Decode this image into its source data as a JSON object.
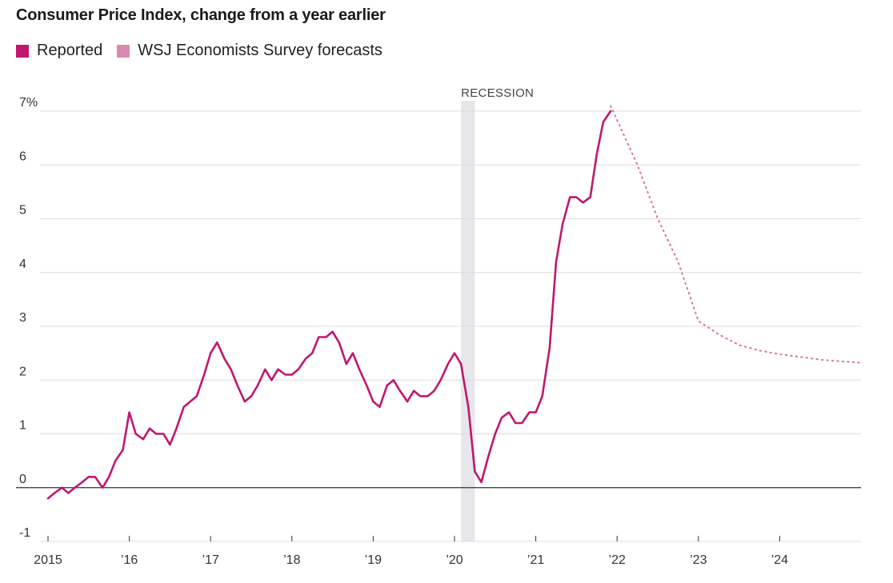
{
  "chart_data": {
    "type": "line",
    "title": "Consumer Price Index, change from a year earlier",
    "xlabel": "",
    "ylabel": "",
    "ylim": [
      -1,
      7
    ],
    "y_ticks": [
      {
        "value": 7,
        "label": "7%"
      },
      {
        "value": 6,
        "label": "6"
      },
      {
        "value": 5,
        "label": "5"
      },
      {
        "value": 4,
        "label": "4"
      },
      {
        "value": 3,
        "label": "3"
      },
      {
        "value": 2,
        "label": "2"
      },
      {
        "value": 1,
        "label": "1"
      },
      {
        "value": 0,
        "label": "0"
      },
      {
        "value": -1,
        "label": "-1"
      }
    ],
    "x_ticks": [
      {
        "value": 2015,
        "label": "2015"
      },
      {
        "value": 2016,
        "label": "’16"
      },
      {
        "value": 2017,
        "label": "’17"
      },
      {
        "value": 2018,
        "label": "’18"
      },
      {
        "value": 2019,
        "label": "’19"
      },
      {
        "value": 2020,
        "label": "’20"
      },
      {
        "value": 2021,
        "label": "’21"
      },
      {
        "value": 2022,
        "label": "’22"
      },
      {
        "value": 2023,
        "label": "’23"
      },
      {
        "value": 2024,
        "label": "’24"
      }
    ],
    "grid": true,
    "legend_position": "top-left",
    "recession": {
      "start": 2020.08,
      "end": 2020.25,
      "label": "RECESSION",
      "color": "#e6e7ea"
    },
    "series": [
      {
        "name": "Reported",
        "style": "solid",
        "color": "#c0176e",
        "x": [
          2015.0,
          2015.08,
          2015.17,
          2015.25,
          2015.33,
          2015.42,
          2015.5,
          2015.58,
          2015.67,
          2015.75,
          2015.83,
          2015.92,
          2016.0,
          2016.08,
          2016.17,
          2016.25,
          2016.33,
          2016.42,
          2016.5,
          2016.58,
          2016.67,
          2016.75,
          2016.83,
          2016.92,
          2017.0,
          2017.08,
          2017.17,
          2017.25,
          2017.33,
          2017.42,
          2017.5,
          2017.58,
          2017.67,
          2017.75,
          2017.83,
          2017.92,
          2018.0,
          2018.08,
          2018.17,
          2018.25,
          2018.33,
          2018.42,
          2018.5,
          2018.58,
          2018.67,
          2018.75,
          2018.83,
          2018.92,
          2019.0,
          2019.08,
          2019.17,
          2019.25,
          2019.33,
          2019.42,
          2019.5,
          2019.58,
          2019.67,
          2019.75,
          2019.83,
          2019.92,
          2020.0,
          2020.08,
          2020.17,
          2020.25,
          2020.33,
          2020.42,
          2020.5,
          2020.58,
          2020.67,
          2020.75,
          2020.83,
          2020.92,
          2021.0,
          2021.08,
          2021.17,
          2021.25,
          2021.33,
          2021.42,
          2021.5,
          2021.58,
          2021.67,
          2021.75,
          2021.83,
          2021.92
        ],
        "y": [
          -0.2,
          -0.1,
          0.0,
          -0.1,
          0.0,
          0.1,
          0.2,
          0.2,
          0.0,
          0.2,
          0.5,
          0.7,
          1.4,
          1.0,
          0.9,
          1.1,
          1.0,
          1.0,
          0.8,
          1.1,
          1.5,
          1.6,
          1.7,
          2.1,
          2.5,
          2.7,
          2.4,
          2.2,
          1.9,
          1.6,
          1.7,
          1.9,
          2.2,
          2.0,
          2.2,
          2.1,
          2.1,
          2.2,
          2.4,
          2.5,
          2.8,
          2.8,
          2.9,
          2.7,
          2.3,
          2.5,
          2.2,
          1.9,
          1.6,
          1.5,
          1.9,
          2.0,
          1.8,
          1.6,
          1.8,
          1.7,
          1.7,
          1.8,
          2.0,
          2.3,
          2.5,
          2.3,
          1.5,
          0.3,
          0.1,
          0.6,
          1.0,
          1.3,
          1.4,
          1.2,
          1.2,
          1.4,
          1.4,
          1.7,
          2.6,
          4.2,
          4.9,
          5.4,
          5.4,
          5.3,
          5.4,
          6.2,
          6.8,
          7.0
        ]
      },
      {
        "name": "WSJ Economists Survey forecasts",
        "style": "dotted",
        "color": "#d8769f",
        "x": [
          2021.92,
          2022.25,
          2022.5,
          2022.75,
          2023.0,
          2023.25,
          2023.5,
          2023.75,
          2024.0,
          2024.25,
          2024.5,
          2024.75,
          2025.0
        ],
        "y": [
          7.1,
          6.0,
          5.0,
          4.2,
          3.1,
          2.85,
          2.65,
          2.55,
          2.48,
          2.43,
          2.38,
          2.35,
          2.32
        ]
      }
    ]
  },
  "legend": [
    {
      "label": "Reported",
      "color": "#c0176e"
    },
    {
      "label": "WSJ Economists Survey forecasts",
      "color": "#d98ab0"
    }
  ]
}
